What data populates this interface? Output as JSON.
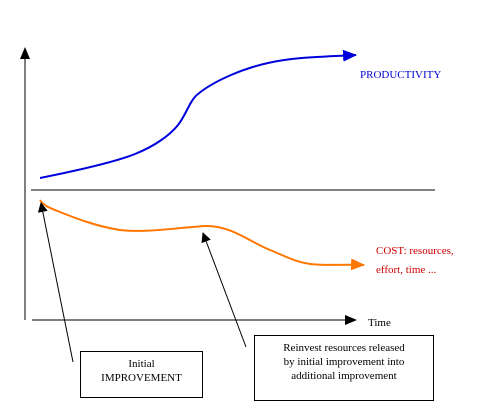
{
  "labels": {
    "productivity": "PRODUCTIVITY",
    "cost_line1": "COST: resources,",
    "cost_line2": "effort, time ...",
    "time_axis": "Time"
  },
  "callouts": {
    "initial": [
      "Initial",
      "IMPROVEMENT"
    ],
    "reinvest": [
      "Reinvest resources released",
      "by initial improvement into",
      "additional improvement"
    ]
  },
  "colors": {
    "productivity": "#0000dd",
    "cost": "#ff7700",
    "axis": "#000000"
  }
}
